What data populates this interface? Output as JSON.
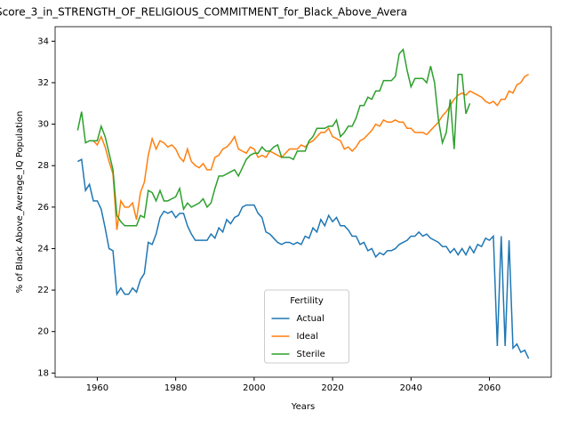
{
  "chart_data": {
    "type": "line",
    "title": "Score_3_in_STRENGTH_OF_RELIGIOUS_COMMITMENT_for_Black_Above_Avera",
    "x_label": "Years",
    "y_label": "% of Black Above_Average_IQ Population",
    "x": [
      1955,
      1956,
      1957,
      1958,
      1959,
      1960,
      1961,
      1962,
      1963,
      1964,
      1965,
      1966,
      1967,
      1968,
      1969,
      1970,
      1971,
      1972,
      1973,
      1974,
      1975,
      1976,
      1977,
      1978,
      1979,
      1980,
      1981,
      1982,
      1983,
      1984,
      1985,
      1986,
      1987,
      1988,
      1989,
      1990,
      1991,
      1992,
      1993,
      1994,
      1995,
      1996,
      1997,
      1998,
      1999,
      2000,
      2001,
      2002,
      2003,
      2004,
      2005,
      2006,
      2007,
      2008,
      2009,
      2010,
      2011,
      2012,
      2013,
      2014,
      2015,
      2016,
      2017,
      2018,
      2019,
      2020,
      2021,
      2022,
      2023,
      2024,
      2025,
      2026,
      2027,
      2028,
      2029,
      2030,
      2031,
      2032,
      2033,
      2034,
      2035,
      2036,
      2037,
      2038,
      2039,
      2040,
      2041,
      2042,
      2043,
      2044,
      2045,
      2046,
      2047,
      2048,
      2049,
      2050,
      2051,
      2052,
      2053,
      2054,
      2055,
      2056,
      2057,
      2058,
      2059,
      2060,
      2061,
      2062,
      2063,
      2064,
      2065,
      2066,
      2067,
      2068,
      2069,
      2070
    ],
    "series": [
      {
        "name": "Actual",
        "color": "#1f77b4",
        "values": [
          28.2,
          28.3,
          26.8,
          27.1,
          26.3,
          26.3,
          25.9,
          25.0,
          24.0,
          23.9,
          21.8,
          22.1,
          21.8,
          21.8,
          22.1,
          21.9,
          22.5,
          22.8,
          24.3,
          24.2,
          24.7,
          25.5,
          25.8,
          25.7,
          25.8,
          25.5,
          25.7,
          25.7,
          25.1,
          24.7,
          24.4,
          24.4,
          24.4,
          24.4,
          24.7,
          24.5,
          25.0,
          24.8,
          25.4,
          25.2,
          25.5,
          25.6,
          26.0,
          26.1,
          26.1,
          26.1,
          25.7,
          25.5,
          24.8,
          24.7,
          24.5,
          24.3,
          24.2,
          24.3,
          24.3,
          24.2,
          24.3,
          24.2,
          24.6,
          24.5,
          25.0,
          24.8,
          25.4,
          25.1,
          25.6,
          25.3,
          25.5,
          25.1,
          25.1,
          24.9,
          24.6,
          24.6,
          24.2,
          24.3,
          23.9,
          24.0,
          23.6,
          23.8,
          23.7,
          23.9,
          23.9,
          24.0,
          24.2,
          24.3,
          24.4,
          24.6,
          24.6,
          24.8,
          24.6,
          24.7,
          24.5,
          24.4,
          24.3,
          24.1,
          24.1,
          23.8,
          24.0,
          23.7,
          24.0,
          23.7,
          24.1,
          23.8,
          24.2,
          24.1,
          24.5,
          24.4,
          24.6,
          19.3,
          24.6,
          19.3,
          24.4,
          19.2,
          19.4,
          19.0,
          19.1,
          18.7
        ]
      },
      {
        "name": "Ideal",
        "color": "#ff7f0e",
        "values": [
          null,
          null,
          null,
          null,
          29.2,
          29.0,
          29.4,
          28.9,
          28.2,
          27.6,
          24.9,
          26.3,
          26.0,
          26.0,
          26.2,
          25.4,
          26.7,
          27.2,
          28.5,
          29.3,
          28.8,
          29.2,
          29.1,
          28.9,
          29.0,
          28.8,
          28.4,
          28.2,
          28.8,
          28.2,
          28.0,
          27.9,
          28.1,
          27.8,
          27.8,
          28.4,
          28.5,
          28.8,
          28.9,
          29.1,
          29.4,
          28.8,
          28.7,
          28.6,
          28.9,
          28.8,
          28.4,
          28.5,
          28.4,
          28.7,
          28.6,
          28.5,
          28.4,
          28.6,
          28.8,
          28.8,
          28.8,
          29.0,
          28.9,
          29.1,
          29.2,
          29.4,
          29.6,
          29.6,
          29.8,
          29.4,
          29.3,
          29.2,
          28.8,
          28.9,
          28.7,
          28.9,
          29.2,
          29.3,
          29.5,
          29.7,
          30.0,
          29.9,
          30.2,
          30.1,
          30.1,
          30.2,
          30.1,
          30.1,
          29.8,
          29.8,
          29.6,
          29.6,
          29.6,
          29.5,
          29.7,
          29.9,
          30.1,
          30.4,
          30.6,
          30.9,
          31.2,
          31.4,
          31.5,
          31.4,
          31.6,
          31.5,
          31.4,
          31.3,
          31.1,
          31.0,
          31.1,
          30.9,
          31.2,
          31.2,
          31.6,
          31.5,
          31.9,
          32.0,
          32.3,
          32.4
        ]
      },
      {
        "name": "Sterile",
        "color": "#2ca02c",
        "values": [
          29.7,
          30.6,
          29.1,
          29.2,
          29.2,
          29.2,
          29.9,
          29.4,
          28.6,
          27.8,
          25.6,
          25.3,
          25.1,
          25.1,
          25.1,
          25.1,
          25.6,
          25.5,
          26.8,
          26.7,
          26.3,
          26.8,
          26.3,
          26.3,
          26.4,
          26.5,
          26.9,
          25.9,
          26.2,
          26.0,
          26.1,
          26.2,
          26.4,
          26.0,
          26.2,
          26.9,
          27.5,
          27.5,
          27.6,
          27.7,
          27.8,
          27.5,
          27.9,
          28.3,
          28.5,
          28.6,
          28.6,
          28.9,
          28.7,
          28.7,
          28.9,
          29.0,
          28.4,
          28.4,
          28.4,
          28.3,
          28.7,
          28.7,
          28.7,
          29.2,
          29.4,
          29.8,
          29.8,
          29.8,
          29.9,
          29.9,
          30.2,
          29.4,
          29.6,
          29.9,
          29.9,
          30.3,
          30.9,
          30.9,
          31.3,
          31.2,
          31.6,
          31.6,
          32.1,
          32.1,
          32.1,
          32.3,
          33.4,
          33.6,
          32.6,
          31.8,
          32.2,
          32.2,
          32.2,
          32.0,
          32.8,
          32.0,
          30.2,
          29.1,
          29.6,
          31.2,
          28.8,
          32.4,
          32.4,
          30.5,
          31.0,
          null,
          null,
          null,
          null,
          null,
          null,
          null,
          null,
          null,
          null,
          null,
          null,
          null,
          null,
          null
        ]
      }
    ],
    "xlim": [
      1949.25,
      2075.75
    ],
    "xticks": [
      1960,
      1980,
      2000,
      2020,
      2040,
      2060
    ],
    "ylim": [
      17.8,
      34.7
    ],
    "yticks": [
      18,
      20,
      22,
      24,
      26,
      28,
      30,
      32,
      34
    ],
    "legend_title": "Fertility",
    "legend_loc": "lower center"
  }
}
